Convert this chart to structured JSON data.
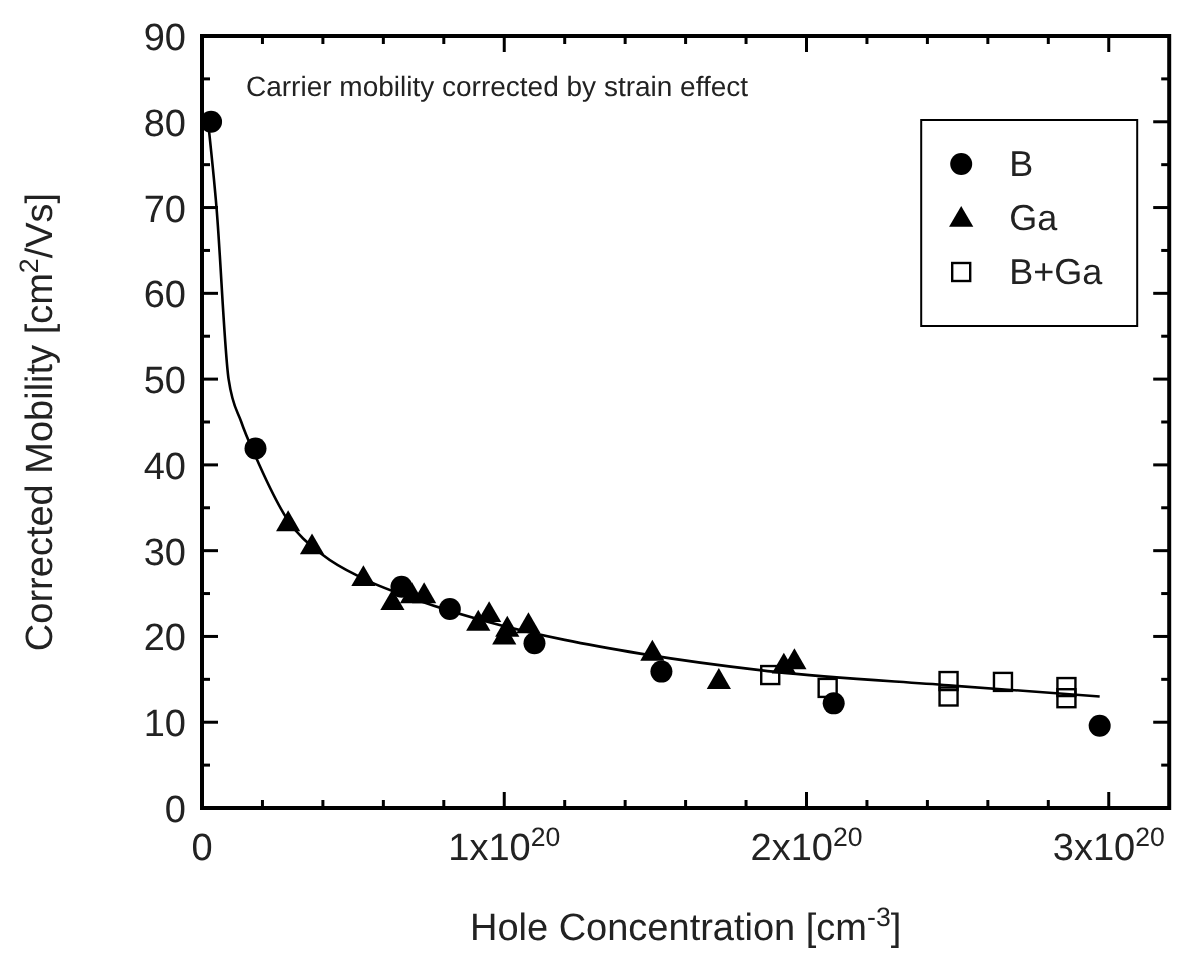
{
  "chart_data": {
    "type": "scatter",
    "xlabel": "Hole Concentration [cm$^{-3}$]",
    "ylabel": "Corrected Mobility [cm$^{2}$/Vs]",
    "annotations": [
      "Carrier mobility corrected by strain effect"
    ],
    "xlim": [
      0,
      3.2e+20
    ],
    "xticks": [
      {
        "value": 0,
        "label": "0"
      },
      {
        "value": 2e+19,
        "label": null
      },
      {
        "value": 4e+19,
        "label": null
      },
      {
        "value": 6e+19,
        "label": null
      },
      {
        "value": 8e+19,
        "label": null
      },
      {
        "value": 1e+20,
        "label": "1x10$^{20}$"
      },
      {
        "value": 1.2e+20,
        "label": null
      },
      {
        "value": 1.4e+20,
        "label": null
      },
      {
        "value": 1.6e+20,
        "label": null
      },
      {
        "value": 1.8e+20,
        "label": null
      },
      {
        "value": 2e+20,
        "label": "2x10$^{20}$"
      },
      {
        "value": 2.2e+20,
        "label": null
      },
      {
        "value": 2.4e+20,
        "label": null
      },
      {
        "value": 2.6e+20,
        "label": null
      },
      {
        "value": 2.8e+20,
        "label": null
      },
      {
        "value": 3e+20,
        "label": "3x10$^{20}$"
      }
    ],
    "ylim": [
      0,
      90
    ],
    "yticks": [
      0,
      {
        "value": 5,
        "label": null
      },
      10,
      {
        "value": 15,
        "label": null
      },
      20,
      {
        "value": 25,
        "label": null
      },
      30,
      {
        "value": 35,
        "label": null
      },
      40,
      {
        "value": 45,
        "label": null
      },
      50,
      {
        "value": 55,
        "label": null
      },
      60,
      {
        "value": 65,
        "label": null
      },
      70,
      {
        "value": 75,
        "label": null
      },
      80,
      {
        "value": 85,
        "label": null
      },
      90
    ],
    "legend": "top right",
    "grid": false,
    "series": [
      {
        "name": "B",
        "marker": "circle",
        "color": "#000000",
        "x": [
          3e+18,
          1.77e+19,
          6.6e+19,
          8.2e+19,
          1.1e+20,
          1.52e+20,
          2.09e+20,
          2.97e+20
        ],
        "values": [
          80,
          41.9,
          25.8,
          23.2,
          19.2,
          15.9,
          12.2,
          9.6
        ]
      },
      {
        "name": "Ga",
        "marker": "triangle",
        "color": "#000000",
        "x": [
          2.85e+19,
          3.64e+19,
          5.34e+19,
          6.3e+19,
          6.95e+19,
          7.35e+19,
          9.14e+19,
          9.5e+19,
          1e+20,
          1.01e+20,
          1.08e+20,
          1.49e+20,
          1.71e+20,
          1.925e+20,
          1.96e+20
        ],
        "values": [
          33.3,
          30.6,
          26.9,
          24.1,
          24.9,
          24.9,
          21.7,
          22.7,
          20.1,
          21,
          21.4,
          18.2,
          14.9,
          16.7,
          17.2
        ]
      },
      {
        "name": "B+Ga",
        "marker": "square",
        "color": "#000000",
        "x": [
          1.88e+20,
          2.07e+20,
          2.47e+20,
          2.47e+20,
          2.65e+20,
          2.86e+20,
          2.86e+20
        ],
        "values": [
          15.5,
          14,
          14.8,
          13,
          14.7,
          14.1,
          12.8
        ]
      },
      {
        "type": "line",
        "marker": "none",
        "line_style": "solid",
        "color": "#000000",
        "x": [
          2e+18,
          4.8e+18,
          8.8e+18,
          1.3e+19,
          1.77e+19,
          2.85e+19,
          4e+19,
          5.3e+19,
          7e+19,
          1e+20,
          1.2e+20,
          1.45e+20,
          1.89e+20,
          2.47e+20,
          2.97e+20
        ],
        "values": [
          80,
          70,
          50,
          45,
          41,
          33.5,
          29.5,
          26.8,
          24.4,
          21.2,
          19.6,
          18,
          15.9,
          14.3,
          13
        ]
      }
    ]
  }
}
